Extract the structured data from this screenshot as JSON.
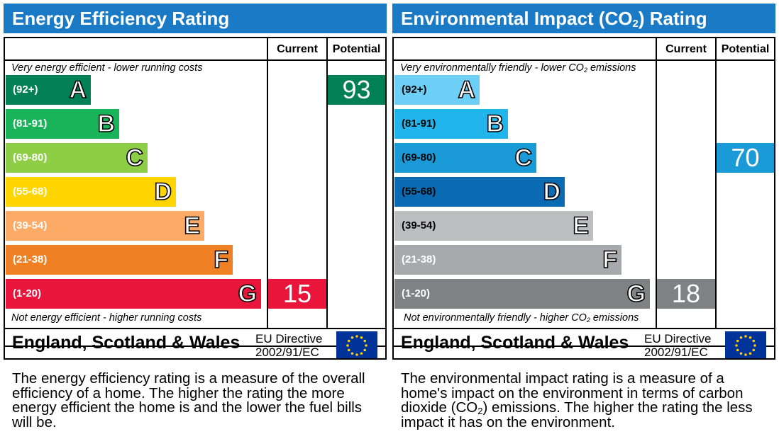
{
  "colors": {
    "title_bg": "#1a7ac5",
    "eff": [
      "#008054",
      "#19b459",
      "#8dce46",
      "#ffd500",
      "#fcaa65",
      "#ef8023",
      "#e9153b"
    ],
    "env": [
      "#6ecff6",
      "#22b5eb",
      "#1a9ad6",
      "#0a6bb3",
      "#bcbec0",
      "#a7a9ac",
      "#808184"
    ],
    "env_text": [
      "#000000",
      "#000000",
      "#000000",
      "#000000",
      "#000000",
      "#ffffff",
      "#ffffff"
    ]
  },
  "energy": {
    "title": "Energy Efficiency Rating",
    "col_current": "Current",
    "col_potential": "Potential",
    "top_caption": "Very energy efficient - lower running costs",
    "bottom_caption": "Not energy efficient - higher running costs",
    "region": "England, Scotland & Wales",
    "directive_line1": "EU Directive",
    "directive_line2": "2002/91/EC",
    "description": "The energy efficiency rating is a measure of the overall efficiency of a home. The higher the rating the more energy efficient the home is and the lower the fuel bills will be."
  },
  "environment": {
    "title_pre": "Environmental Impact (CO",
    "title_sub": "2",
    "title_post": ") Rating",
    "col_current": "Current",
    "col_potential": "Potential",
    "top_caption_pre": "Very environmentally friendly - lower CO",
    "top_caption_sub": "2",
    "top_caption_post": " emissions",
    "bottom_caption_pre": "Not environmentally friendly - higher CO",
    "bottom_caption_sub": "2",
    "bottom_caption_post": " emissions",
    "region": "England, Scotland & Wales",
    "directive_line1": "EU Directive",
    "directive_line2": "2002/91/EC",
    "description_pre": "The environmental impact rating is a measure of a home's impact on the environment in terms of carbon dioxide (CO",
    "description_sub": "2",
    "description_post": ") emissions. The higher the rating the less impact it has on the environment."
  },
  "chart_data": [
    {
      "type": "bar",
      "title": "Energy Efficiency Rating",
      "bands": [
        {
          "range": "(92+)",
          "letter": "A"
        },
        {
          "range": "(81-91)",
          "letter": "B"
        },
        {
          "range": "(69-80)",
          "letter": "C"
        },
        {
          "range": "(55-68)",
          "letter": "D"
        },
        {
          "range": "(39-54)",
          "letter": "E"
        },
        {
          "range": "(21-38)",
          "letter": "F"
        },
        {
          "range": "(1-20)",
          "letter": "G"
        }
      ],
      "current": {
        "value": "15",
        "band": "G"
      },
      "potential": {
        "value": "93",
        "band": "A"
      }
    },
    {
      "type": "bar",
      "title": "Environmental Impact (CO2) Rating",
      "bands": [
        {
          "range": "(92+)",
          "letter": "A"
        },
        {
          "range": "(81-91)",
          "letter": "B"
        },
        {
          "range": "(69-80)",
          "letter": "C"
        },
        {
          "range": "(55-68)",
          "letter": "D"
        },
        {
          "range": "(39-54)",
          "letter": "E"
        },
        {
          "range": "(21-38)",
          "letter": "F"
        },
        {
          "range": "(1-20)",
          "letter": "G"
        }
      ],
      "current": {
        "value": "18",
        "band": "G"
      },
      "potential": {
        "value": "70",
        "band": "C"
      }
    }
  ]
}
